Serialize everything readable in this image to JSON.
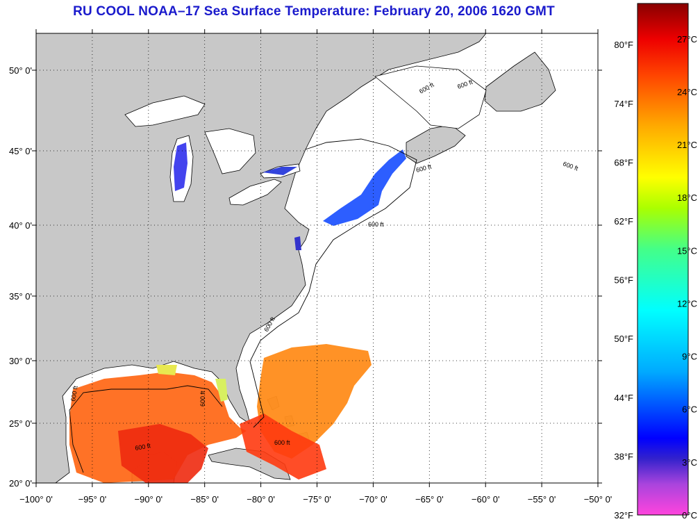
{
  "title": "RU COOL  NOAA–17  Sea Surface Temperature:  February 20, 2006 1620 GMT",
  "map": {
    "lon_range": [
      -100,
      -50
    ],
    "lat_range": [
      20,
      52
    ],
    "lat_labels": [
      "50° 0'",
      "45° 0'",
      "40° 0'",
      "35° 0'",
      "30° 0'",
      "25° 0'",
      "20° 0'"
    ],
    "lat_values": [
      50,
      45,
      40,
      35,
      30,
      25,
      20
    ],
    "lon_labels": [
      "−100° 0'",
      "−95° 0'",
      "−90° 0'",
      "−85° 0'",
      "−80° 0'",
      "−75° 0'",
      "−70° 0'",
      "−65° 0'",
      "−60° 0'",
      "−55° 0'",
      "−50° 0'"
    ],
    "lon_values": [
      -100,
      -95,
      -90,
      -85,
      -80,
      -75,
      -70,
      -65,
      -60,
      -55,
      -50
    ],
    "land_color": "#c8c8c8",
    "contour_label": "600 ft"
  },
  "colorbar": {
    "f_labels": [
      "80°F",
      "74°F",
      "68°F",
      "62°F",
      "56°F",
      "50°F",
      "44°F",
      "38°F",
      "32°F"
    ],
    "c_labels": [
      "27°C",
      "24°C",
      "21°C",
      "18°C",
      "15°C",
      "12°C",
      "9°C",
      "6°C",
      "3°C",
      "0°C"
    ],
    "c_values": [
      27,
      24,
      21,
      18,
      15,
      12,
      9,
      6,
      3,
      0
    ],
    "f_values": [
      80,
      74,
      68,
      62,
      56,
      50,
      44,
      38,
      32
    ],
    "range_c": [
      0,
      29
    ],
    "stops": [
      "#ff44dd",
      "#8844dd",
      "#0000ff",
      "#00aaff",
      "#00ffff",
      "#44ff88",
      "#88ff00",
      "#ffff00",
      "#ffaa00",
      "#ff5500",
      "#ff0000",
      "#990000"
    ]
  }
}
